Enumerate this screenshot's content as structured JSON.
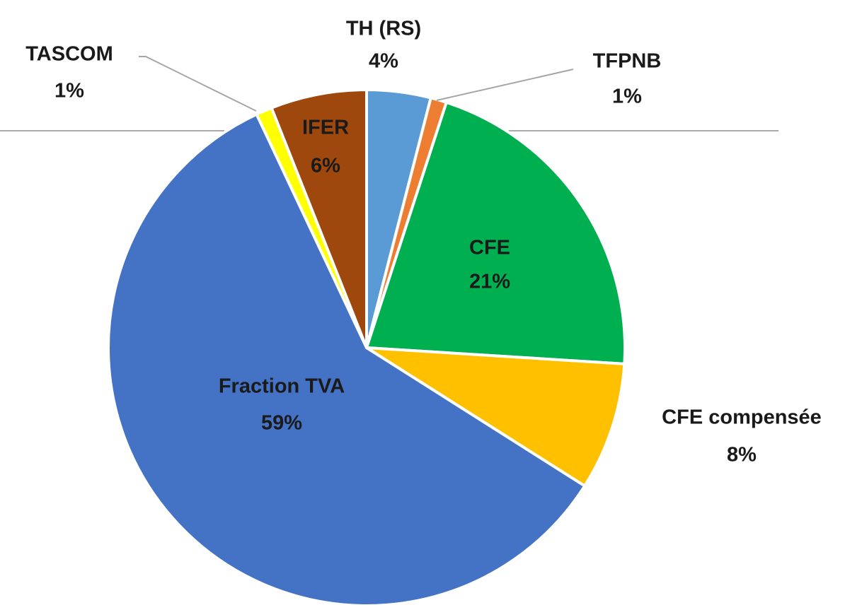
{
  "chart_data": {
    "type": "pie",
    "categories": [
      "TH (RS)",
      "TFPNB",
      "CFE",
      "CFE compensée",
      "Fraction TVA",
      "TASCOM",
      "IFER"
    ],
    "values": [
      4,
      1,
      21,
      8,
      59,
      1,
      6
    ],
    "value_labels": [
      "4%",
      "1%",
      "21%",
      "8%",
      "59%",
      "1%",
      "6%"
    ],
    "colors": [
      "#5b9bd5",
      "#ed7d31",
      "#00b050",
      "#ffc000",
      "#4472c4",
      "#ffff00",
      "#9e480e"
    ]
  }
}
